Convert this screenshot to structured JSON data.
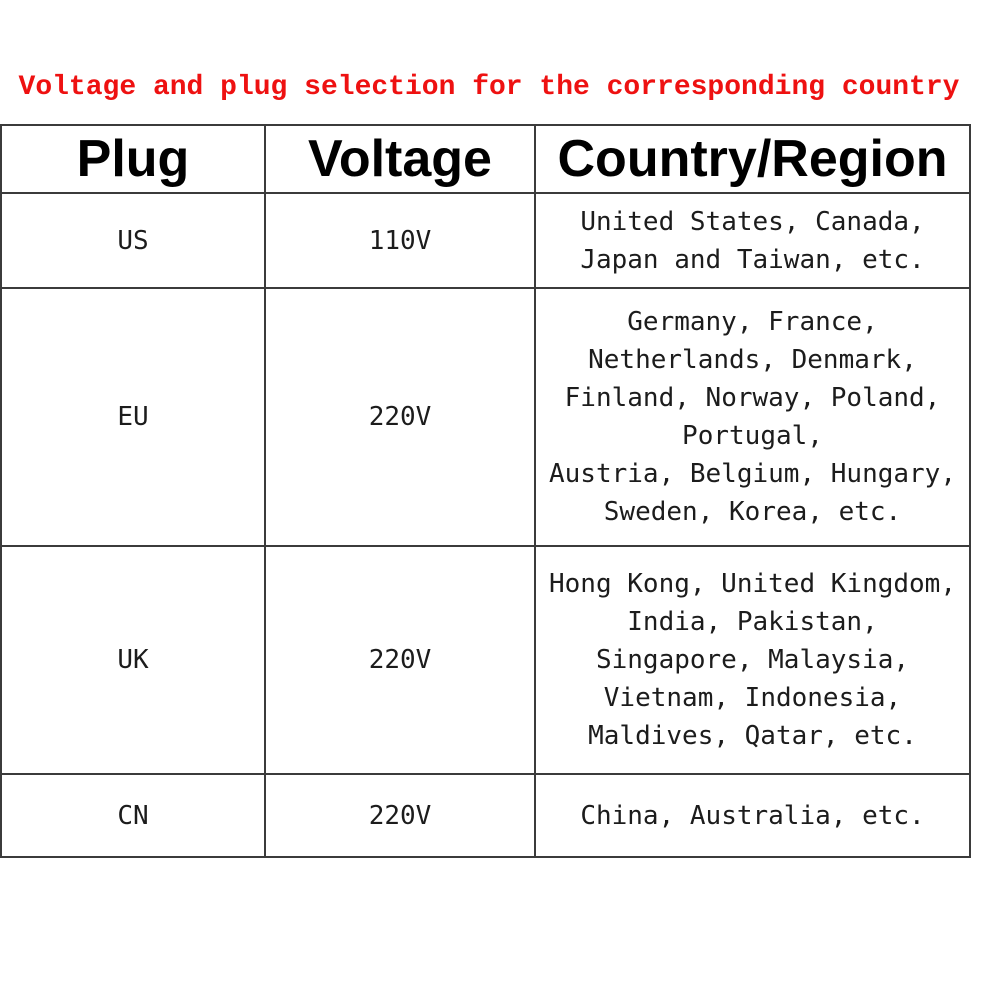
{
  "title": "Voltage and plug selection for the corresponding country",
  "colors": {
    "title_red": "#ee1111",
    "border_dark": "#3b3b3b",
    "body_text": "#1c1c1c",
    "background": "#ffffff"
  },
  "table": {
    "headers": [
      "Plug",
      "Voltage",
      "Country/Region"
    ],
    "rows": [
      {
        "plug": "US",
        "voltage": "110V",
        "countries": "United States, Canada,\nJapan and Taiwan, etc."
      },
      {
        "plug": "EU",
        "voltage": "220V",
        "countries": "Germany, France,\nNetherlands, Denmark,\nFinland, Norway, Poland,\nPortugal,\nAustria, Belgium, Hungary,\nSweden, Korea, etc."
      },
      {
        "plug": "UK",
        "voltage": "220V",
        "countries": "Hong Kong, United Kingdom,\nIndia, Pakistan,\nSingapore, Malaysia,\nVietnam, Indonesia,\nMaldives, Qatar, etc."
      },
      {
        "plug": "CN",
        "voltage": "220V",
        "countries": "China, Australia, etc."
      }
    ]
  }
}
